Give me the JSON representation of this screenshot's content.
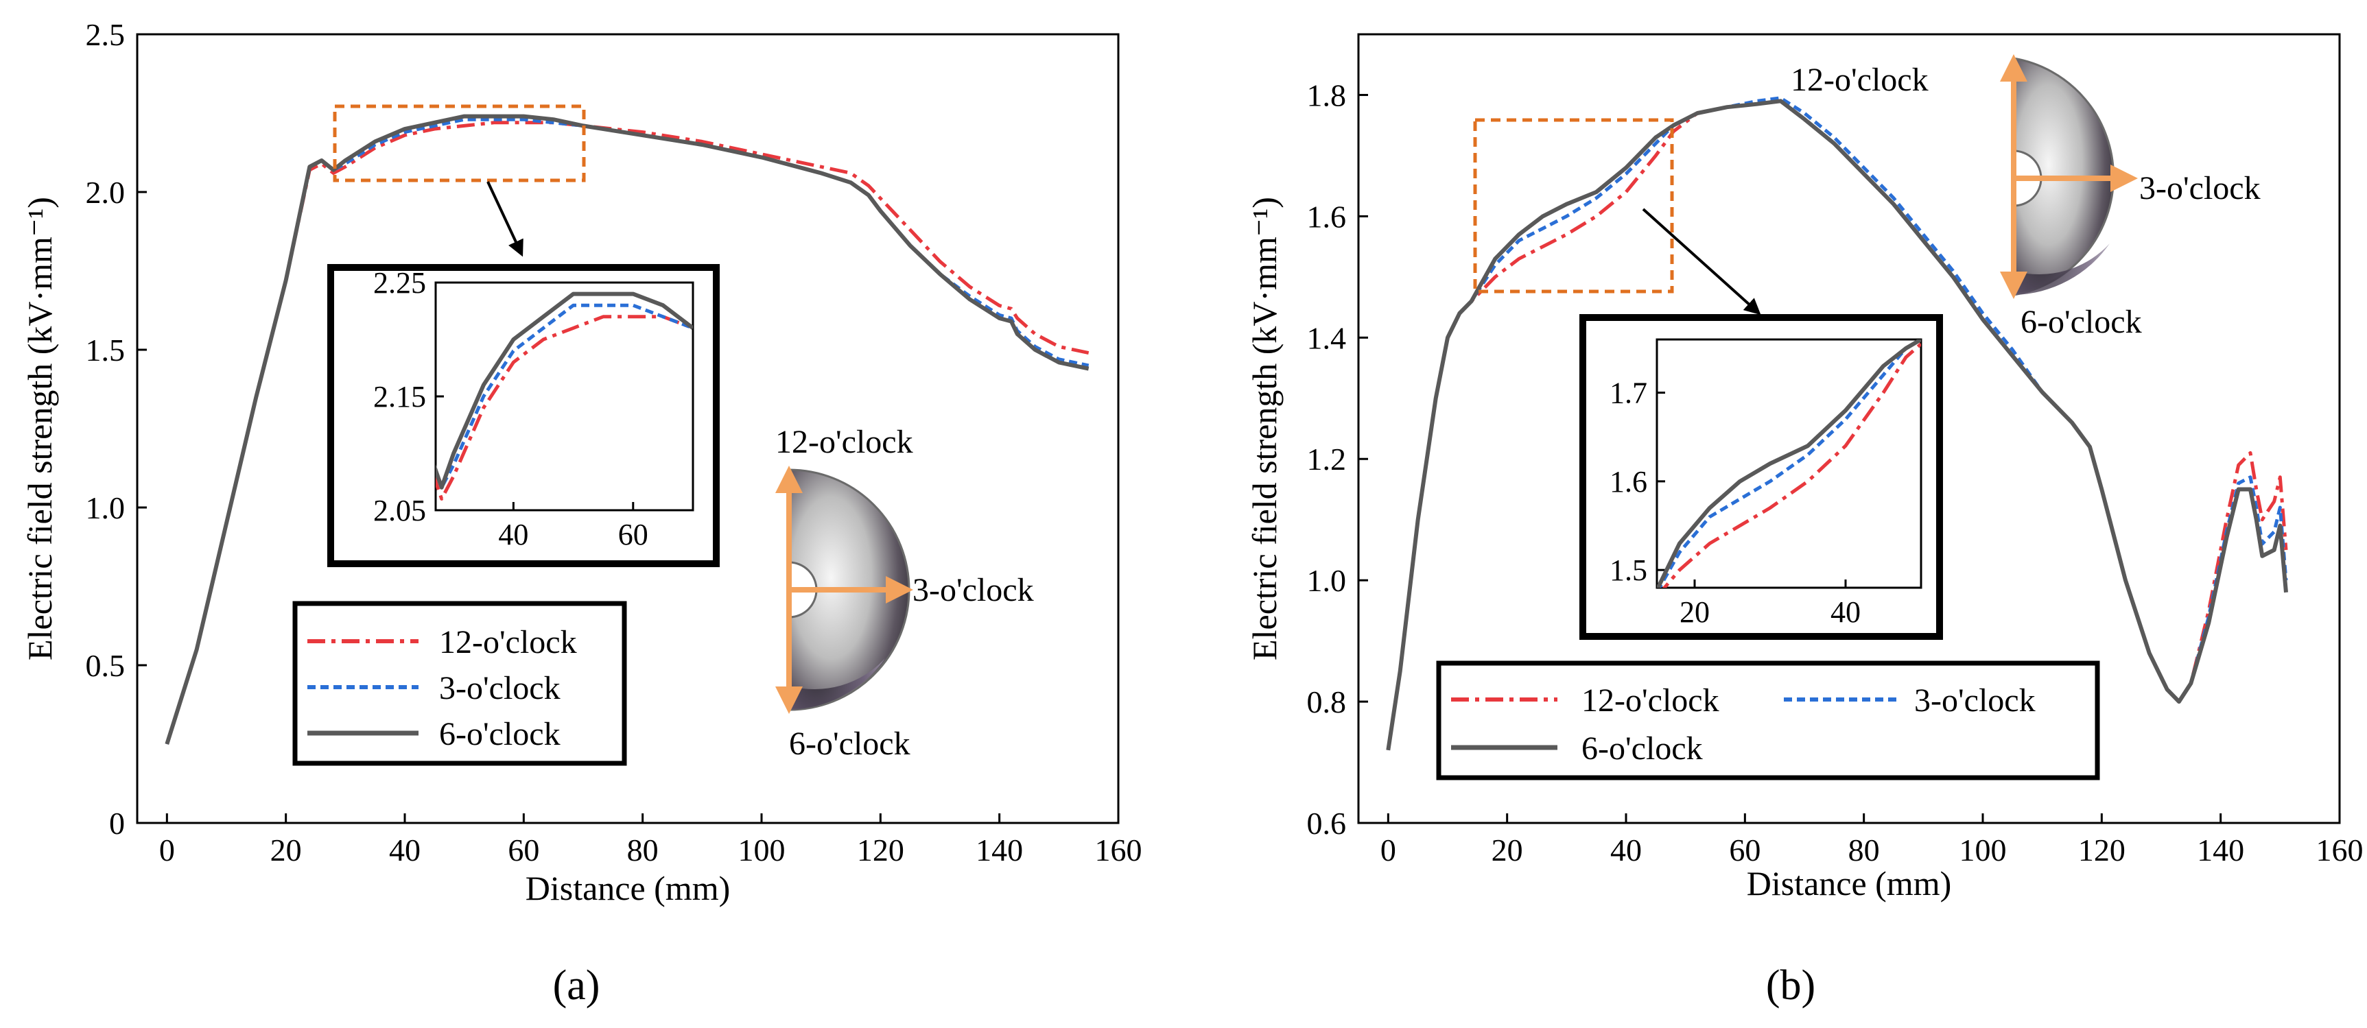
{
  "chart_data": [
    {
      "id": "a",
      "type": "line",
      "panel_label": "(a)",
      "xlabel": "Distance (mm)",
      "ylabel": "Electric field strength (kV·mm⁻¹)",
      "xlim": [
        -5,
        160
      ],
      "ylim": [
        0,
        2.5
      ],
      "xticks": [
        "0",
        "20",
        "40",
        "60",
        "80",
        "100",
        "120",
        "140",
        "160"
      ],
      "yticks": [
        "0",
        "0.5",
        "1.0",
        "1.5",
        "2.0",
        "2.5"
      ],
      "legend": [
        "12-o'clock",
        "3-o'clock",
        "6-o'clock"
      ],
      "annotations": {
        "top": "12-o'clock",
        "right": "3-o'clock",
        "bottom": "6-o'clock"
      },
      "series": [
        {
          "name": "12-o'clock",
          "color": "#e8383d",
          "dash": "dashdot",
          "points": [
            [
              0,
              0.25
            ],
            [
              5,
              0.55
            ],
            [
              10,
              0.95
            ],
            [
              15,
              1.35
            ],
            [
              20,
              1.72
            ],
            [
              24,
              2.07
            ],
            [
              26,
              2.09
            ],
            [
              28,
              2.06
            ],
            [
              30,
              2.08
            ],
            [
              35,
              2.14
            ],
            [
              40,
              2.18
            ],
            [
              45,
              2.2
            ],
            [
              50,
              2.21
            ],
            [
              55,
              2.22
            ],
            [
              60,
              2.22
            ],
            [
              65,
              2.22
            ],
            [
              70,
              2.21
            ],
            [
              80,
              2.19
            ],
            [
              90,
              2.16
            ],
            [
              100,
              2.12
            ],
            [
              110,
              2.08
            ],
            [
              115,
              2.06
            ],
            [
              118,
              2.02
            ],
            [
              120,
              1.98
            ],
            [
              125,
              1.88
            ],
            [
              130,
              1.78
            ],
            [
              135,
              1.7
            ],
            [
              140,
              1.64
            ],
            [
              142,
              1.63
            ],
            [
              143,
              1.6
            ],
            [
              146,
              1.55
            ],
            [
              150,
              1.51
            ],
            [
              155,
              1.49
            ]
          ]
        },
        {
          "name": "3-o'clock",
          "color": "#2a6fd6",
          "dash": "dash",
          "points": [
            [
              0,
              0.25
            ],
            [
              5,
              0.55
            ],
            [
              10,
              0.95
            ],
            [
              15,
              1.35
            ],
            [
              20,
              1.72
            ],
            [
              24,
              2.08
            ],
            [
              26,
              2.1
            ],
            [
              28,
              2.07
            ],
            [
              30,
              2.09
            ],
            [
              35,
              2.15
            ],
            [
              40,
              2.19
            ],
            [
              45,
              2.21
            ],
            [
              50,
              2.23
            ],
            [
              55,
              2.23
            ],
            [
              60,
              2.23
            ],
            [
              65,
              2.22
            ],
            [
              70,
              2.21
            ],
            [
              80,
              2.18
            ],
            [
              90,
              2.15
            ],
            [
              100,
              2.11
            ],
            [
              110,
              2.06
            ],
            [
              115,
              2.03
            ],
            [
              118,
              1.99
            ],
            [
              120,
              1.94
            ],
            [
              125,
              1.83
            ],
            [
              130,
              1.74
            ],
            [
              135,
              1.67
            ],
            [
              140,
              1.61
            ],
            [
              142,
              1.6
            ],
            [
              143,
              1.56
            ],
            [
              146,
              1.51
            ],
            [
              150,
              1.47
            ],
            [
              155,
              1.45
            ]
          ]
        },
        {
          "name": "6-o'clock",
          "color": "#595959",
          "dash": "solid",
          "points": [
            [
              0,
              0.25
            ],
            [
              5,
              0.55
            ],
            [
              10,
              0.95
            ],
            [
              15,
              1.35
            ],
            [
              20,
              1.72
            ],
            [
              24,
              2.08
            ],
            [
              26,
              2.1
            ],
            [
              28,
              2.07
            ],
            [
              30,
              2.1
            ],
            [
              35,
              2.16
            ],
            [
              40,
              2.2
            ],
            [
              45,
              2.22
            ],
            [
              50,
              2.24
            ],
            [
              55,
              2.24
            ],
            [
              60,
              2.24
            ],
            [
              65,
              2.23
            ],
            [
              70,
              2.21
            ],
            [
              80,
              2.18
            ],
            [
              90,
              2.15
            ],
            [
              100,
              2.11
            ],
            [
              110,
              2.06
            ],
            [
              115,
              2.03
            ],
            [
              118,
              1.99
            ],
            [
              120,
              1.94
            ],
            [
              125,
              1.83
            ],
            [
              130,
              1.74
            ],
            [
              135,
              1.66
            ],
            [
              140,
              1.6
            ],
            [
              142,
              1.59
            ],
            [
              143,
              1.55
            ],
            [
              146,
              1.5
            ],
            [
              150,
              1.46
            ],
            [
              155,
              1.44
            ]
          ]
        }
      ],
      "inset": {
        "xlim": [
          27,
          70
        ],
        "ylim": [
          2.05,
          2.25
        ],
        "xticks": [
          "40",
          "60"
        ],
        "yticks": [
          "2.05",
          "2.15",
          "2.25"
        ]
      }
    },
    {
      "id": "b",
      "type": "line",
      "panel_label": "(b)",
      "xlabel": "Distance (mm)",
      "ylabel": "Electric field strength (kV·mm⁻¹)",
      "xlim": [
        -5,
        160
      ],
      "ylim": [
        0.6,
        1.9
      ],
      "xticks": [
        "0",
        "20",
        "40",
        "60",
        "80",
        "100",
        "120",
        "140",
        "160"
      ],
      "yticks": [
        "0.6",
        "0.8",
        "1.0",
        "1.2",
        "1.4",
        "1.6",
        "1.8"
      ],
      "legend": [
        "12-o'clock",
        "3-o'clock",
        "6-o'clock"
      ],
      "annotations": {
        "top": "12-o'clock",
        "right": "3-o'clock",
        "bottom": "6-o'clock"
      },
      "series": [
        {
          "name": "12-o'clock",
          "color": "#e8383d",
          "dash": "dashdot",
          "points": [
            [
              0,
              0.72
            ],
            [
              2,
              0.85
            ],
            [
              5,
              1.1
            ],
            [
              8,
              1.3
            ],
            [
              10,
              1.4
            ],
            [
              12,
              1.44
            ],
            [
              14,
              1.46
            ],
            [
              18,
              1.5
            ],
            [
              22,
              1.53
            ],
            [
              26,
              1.55
            ],
            [
              30,
              1.57
            ],
            [
              35,
              1.6
            ],
            [
              40,
              1.64
            ],
            [
              45,
              1.7
            ],
            [
              48,
              1.74
            ],
            [
              52,
              1.77
            ],
            [
              57,
              1.78
            ],
            [
              62,
              1.785
            ],
            [
              66,
              1.79
            ],
            [
              70,
              1.76
            ],
            [
              75,
              1.72
            ],
            [
              80,
              1.67
            ],
            [
              85,
              1.62
            ],
            [
              90,
              1.56
            ],
            [
              95,
              1.5
            ],
            [
              100,
              1.43
            ],
            [
              105,
              1.37
            ],
            [
              110,
              1.31
            ],
            [
              115,
              1.26
            ],
            [
              118,
              1.22
            ],
            [
              120,
              1.15
            ],
            [
              124,
              1.0
            ],
            [
              128,
              0.88
            ],
            [
              131,
              0.82
            ],
            [
              133,
              0.8
            ],
            [
              135,
              0.83
            ],
            [
              138,
              0.95
            ],
            [
              141,
              1.1
            ],
            [
              143,
              1.19
            ],
            [
              145,
              1.21
            ],
            [
              146,
              1.15
            ],
            [
              147,
              1.1
            ],
            [
              149,
              1.13
            ],
            [
              150,
              1.17
            ],
            [
              151,
              1.05
            ]
          ]
        },
        {
          "name": "3-o'clock",
          "color": "#2a6fd6",
          "dash": "dash",
          "points": [
            [
              0,
              0.72
            ],
            [
              2,
              0.85
            ],
            [
              5,
              1.1
            ],
            [
              8,
              1.3
            ],
            [
              10,
              1.4
            ],
            [
              12,
              1.44
            ],
            [
              14,
              1.46
            ],
            [
              18,
              1.52
            ],
            [
              22,
              1.56
            ],
            [
              26,
              1.58
            ],
            [
              30,
              1.6
            ],
            [
              35,
              1.63
            ],
            [
              40,
              1.67
            ],
            [
              45,
              1.72
            ],
            [
              48,
              1.75
            ],
            [
              52,
              1.77
            ],
            [
              57,
              1.78
            ],
            [
              62,
              1.79
            ],
            [
              66,
              1.795
            ],
            [
              70,
              1.77
            ],
            [
              75,
              1.73
            ],
            [
              80,
              1.68
            ],
            [
              85,
              1.63
            ],
            [
              90,
              1.57
            ],
            [
              95,
              1.51
            ],
            [
              100,
              1.44
            ],
            [
              105,
              1.38
            ],
            [
              110,
              1.31
            ],
            [
              115,
              1.26
            ],
            [
              118,
              1.22
            ],
            [
              120,
              1.15
            ],
            [
              124,
              1.0
            ],
            [
              128,
              0.88
            ],
            [
              131,
              0.82
            ],
            [
              133,
              0.8
            ],
            [
              135,
              0.83
            ],
            [
              138,
              0.94
            ],
            [
              141,
              1.08
            ],
            [
              143,
              1.16
            ],
            [
              145,
              1.17
            ],
            [
              146,
              1.12
            ],
            [
              147,
              1.06
            ],
            [
              149,
              1.08
            ],
            [
              150,
              1.12
            ],
            [
              151,
              1.0
            ]
          ]
        },
        {
          "name": "6-o'clock",
          "color": "#595959",
          "dash": "solid",
          "points": [
            [
              0,
              0.72
            ],
            [
              2,
              0.85
            ],
            [
              5,
              1.1
            ],
            [
              8,
              1.3
            ],
            [
              10,
              1.4
            ],
            [
              12,
              1.44
            ],
            [
              14,
              1.46
            ],
            [
              18,
              1.53
            ],
            [
              22,
              1.57
            ],
            [
              26,
              1.6
            ],
            [
              30,
              1.62
            ],
            [
              35,
              1.64
            ],
            [
              40,
              1.68
            ],
            [
              45,
              1.73
            ],
            [
              48,
              1.75
            ],
            [
              52,
              1.77
            ],
            [
              57,
              1.78
            ],
            [
              62,
              1.785
            ],
            [
              66,
              1.79
            ],
            [
              70,
              1.76
            ],
            [
              75,
              1.72
            ],
            [
              80,
              1.67
            ],
            [
              85,
              1.62
            ],
            [
              90,
              1.56
            ],
            [
              95,
              1.5
            ],
            [
              100,
              1.43
            ],
            [
              105,
              1.37
            ],
            [
              110,
              1.31
            ],
            [
              115,
              1.26
            ],
            [
              118,
              1.22
            ],
            [
              120,
              1.15
            ],
            [
              124,
              1.0
            ],
            [
              128,
              0.88
            ],
            [
              131,
              0.82
            ],
            [
              133,
              0.8
            ],
            [
              135,
              0.83
            ],
            [
              138,
              0.93
            ],
            [
              141,
              1.07
            ],
            [
              143,
              1.15
            ],
            [
              145,
              1.15
            ],
            [
              146,
              1.1
            ],
            [
              147,
              1.04
            ],
            [
              149,
              1.05
            ],
            [
              150,
              1.09
            ],
            [
              151,
              0.98
            ]
          ]
        }
      ],
      "inset": {
        "xlim": [
          15,
          50
        ],
        "ylim": [
          1.48,
          1.76
        ],
        "xticks": [
          "20",
          "40"
        ],
        "yticks": [
          "1.5",
          "1.6",
          "1.7"
        ]
      }
    }
  ]
}
